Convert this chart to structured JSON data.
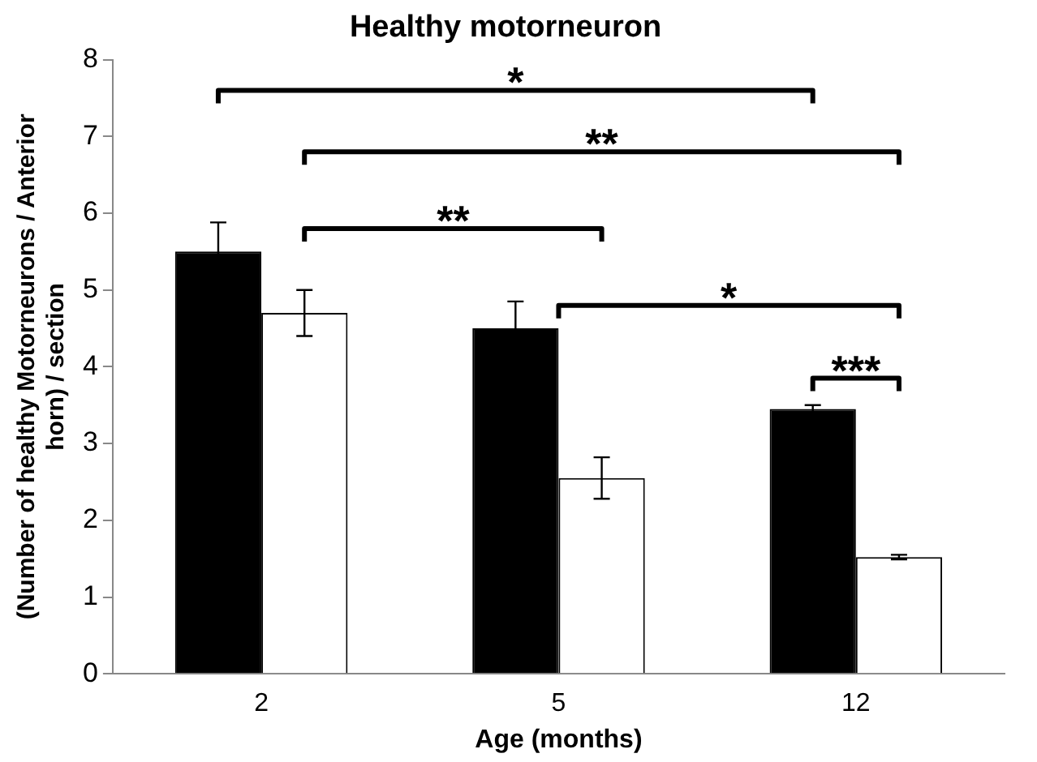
{
  "chart_data": {
    "type": "bar",
    "title": "Healthy motorneuron",
    "xlabel": "Age (months)",
    "ylabel": "(Number of healthy Motorneurons / Anterior horn) / section",
    "categories": [
      "2",
      "5",
      "12"
    ],
    "series": [
      {
        "color": "#000000",
        "values": [
          5.5,
          4.5,
          3.45
        ],
        "errors": [
          0.38,
          0.35,
          0.05
        ]
      },
      {
        "color": "#ffffff",
        "values": [
          4.7,
          2.55,
          1.52
        ],
        "errors": [
          0.3,
          0.27,
          0.03
        ]
      }
    ],
    "ylim": [
      0,
      8
    ],
    "yticks": [
      0,
      1,
      2,
      3,
      4,
      5,
      6,
      7,
      8
    ],
    "grid": false,
    "legend": false,
    "annotations": [
      "*",
      "**",
      "**",
      "*",
      "***"
    ]
  }
}
